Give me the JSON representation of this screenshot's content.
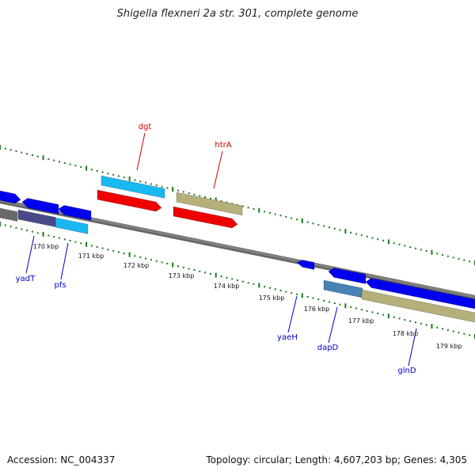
{
  "header": {
    "title": "Shigella flexneri 2a str. 301, complete genome"
  },
  "footer": {
    "accession": "Accession: NC_004337",
    "summary": "Topology: circular; Length: 4,607,203 bp; Genes: 4,305"
  },
  "colors": {
    "backbone": "#808080",
    "tick": "#1a7a1a",
    "gene_label": "#0000cc",
    "rna_label": "#cc0000",
    "blue": "#0000ee",
    "cyan": "#1ab8f0",
    "red": "#ee0000",
    "khaki": "#b5b07a",
    "gray": "#6a6a6a",
    "slate": "#4a4a8a",
    "steel": "#4682b4"
  },
  "ruler": [
    {
      "label": "170 kbp"
    },
    {
      "label": "171 kbp"
    },
    {
      "label": "172 kbp"
    },
    {
      "label": "173 kbp"
    },
    {
      "label": "174 kbp"
    },
    {
      "label": "175 kbp"
    },
    {
      "label": "176 kbp"
    },
    {
      "label": "177 kbp"
    },
    {
      "label": "178 kbp"
    },
    {
      "label": "179 kbp"
    }
  ],
  "labels": [
    {
      "name": "dgt",
      "kind": "rna"
    },
    {
      "name": "htrA",
      "kind": "rna"
    },
    {
      "name": "yadT",
      "kind": "gene"
    },
    {
      "name": "pfs",
      "kind": "gene"
    },
    {
      "name": "yaeH",
      "kind": "gene"
    },
    {
      "name": "dapD",
      "kind": "gene"
    },
    {
      "name": "glnD",
      "kind": "gene"
    }
  ]
}
